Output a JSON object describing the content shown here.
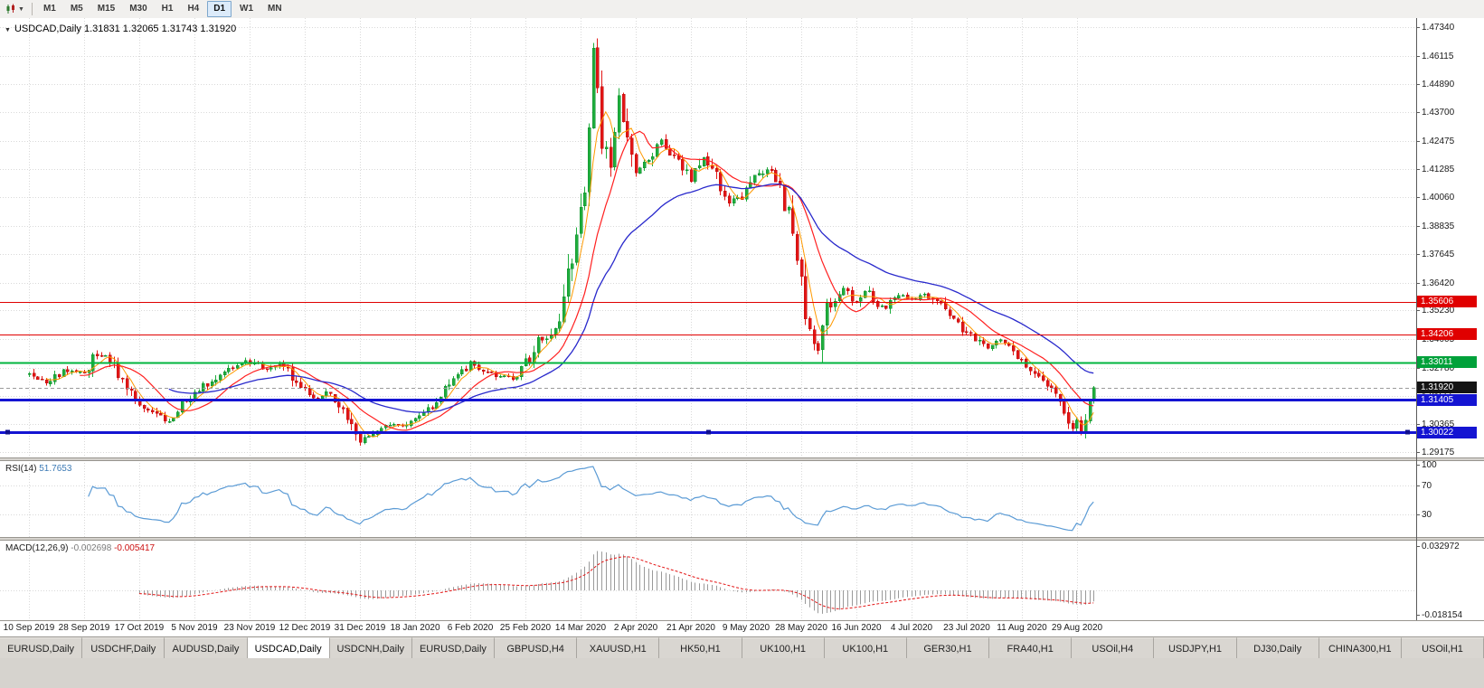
{
  "colors": {
    "up": "#1fae3d",
    "up_stroke": "#0f8a2c",
    "down": "#e31515",
    "down_stroke": "#b80f0f",
    "ma_fast": "#ff9900",
    "ma_mid": "#ff2020",
    "ma_slow": "#2929cc",
    "grid": "#d9d9d9",
    "rsi_line": "#5b9bd5",
    "macd_bar": "#9a9a9a",
    "macd_signal": "#e31515",
    "bid_line": "#9a9a9a",
    "axis_line": "#5a5a5a",
    "separator": "#d6d3ce",
    "separator_edge": "#98958f"
  },
  "toolbar": {
    "chart_menu_icon": "candlestick-chart-icon",
    "dropdown_icon": "caret-down-icon",
    "timeframes": [
      "M1",
      "M5",
      "M15",
      "M30",
      "H1",
      "H4",
      "D1",
      "W1",
      "MN"
    ],
    "active_timeframe": "D1"
  },
  "chart": {
    "symbol_period": "USDCAD,Daily",
    "ohlc": "1.31831 1.32065 1.31743 1.31920"
  },
  "rsi": {
    "label": "RSI(14)",
    "value": "51.7653",
    "axis_labels": [
      "100",
      "70",
      "30"
    ],
    "levels": [
      70,
      30
    ]
  },
  "macd": {
    "label": "MACD(12,26,9)",
    "value": "-0.002698",
    "signal_value": "-0.005417",
    "axis_top": "0.032972",
    "axis_bottom": "-0.018154"
  },
  "y_axis_labels": [
    "1.47340",
    "1.46115",
    "1.44890",
    "1.43700",
    "1.42475",
    "1.41285",
    "1.40060",
    "1.38835",
    "1.37645",
    "1.36420",
    "1.35230",
    "1.34005",
    "1.32780",
    "1.31555",
    "1.30365",
    "1.29175"
  ],
  "time_axis": [
    "10 Sep 2019",
    "28 Sep 2019",
    "17 Oct 2019",
    "5 Nov 2019",
    "23 Nov 2019",
    "12 Dec 2019",
    "31 Dec 2019",
    "18 Jan 2020",
    "6 Feb 2020",
    "25 Feb 2020",
    "14 Mar 2020",
    "2 Apr 2020",
    "21 Apr 2020",
    "9 May 2020",
    "28 May 2020",
    "16 Jun 2020",
    "4 Jul 2020",
    "23 Jul 2020",
    "11 Aug 2020",
    "29 Aug 2020"
  ],
  "price_tags": [
    {
      "value": "1.35606",
      "price": 1.35606,
      "bg": "#e00000"
    },
    {
      "value": "1.34206",
      "price": 1.34206,
      "bg": "#e00000"
    },
    {
      "value": "1.33011",
      "price": 1.33011,
      "bg": "#00a13a"
    },
    {
      "value": "1.31920",
      "price": 1.3192,
      "bg": "#141414"
    },
    {
      "value": "1.31405",
      "price": 1.31405,
      "bg": "#1414d2"
    },
    {
      "value": "1.30022",
      "price": 1.30022,
      "bg": "#1414d2"
    }
  ],
  "chart_data": {
    "type": "candlestick",
    "symbol": "USDCAD",
    "period": "Daily",
    "last_ohlc": {
      "open": 1.31831,
      "high": 1.32065,
      "low": 1.31743,
      "close": 1.3192
    },
    "bid": 1.3192,
    "price_axis": {
      "top": 1.47727,
      "bottom": 1.2894
    },
    "candles_count": 252,
    "price_path_anchors": [
      [
        0,
        1.3255
      ],
      [
        4,
        1.3215
      ],
      [
        8,
        1.3268
      ],
      [
        13,
        1.3245
      ],
      [
        16,
        1.3342
      ],
      [
        19,
        1.331
      ],
      [
        23,
        1.3205
      ],
      [
        26,
        1.313
      ],
      [
        30,
        1.3072
      ],
      [
        33,
        1.3052
      ],
      [
        36,
        1.312
      ],
      [
        39,
        1.3158
      ],
      [
        43,
        1.3228
      ],
      [
        47,
        1.3282
      ],
      [
        52,
        1.3302
      ],
      [
        56,
        1.3278
      ],
      [
        60,
        1.3292
      ],
      [
        64,
        1.3188
      ],
      [
        68,
        1.3142
      ],
      [
        71,
        1.3172
      ],
      [
        75,
        1.3078
      ],
      [
        78,
        1.2972
      ],
      [
        81,
        1.2992
      ],
      [
        85,
        1.3042
      ],
      [
        88,
        1.3035
      ],
      [
        91,
        1.3062
      ],
      [
        95,
        1.3112
      ],
      [
        99,
        1.3202
      ],
      [
        104,
        1.3292
      ],
      [
        108,
        1.3255
      ],
      [
        112,
        1.3242
      ],
      [
        115,
        1.323
      ],
      [
        117,
        1.3292
      ],
      [
        120,
        1.3392
      ],
      [
        123,
        1.3422
      ],
      [
        126,
        1.3545
      ],
      [
        128,
        1.3765
      ],
      [
        130,
        1.3962
      ],
      [
        131,
        1.4052
      ],
      [
        133,
        1.466
      ],
      [
        134,
        1.4452
      ],
      [
        135,
        1.4255
      ],
      [
        137,
        1.4105
      ],
      [
        139,
        1.445
      ],
      [
        141,
        1.4285
      ],
      [
        143,
        1.4085
      ],
      [
        146,
        1.4162
      ],
      [
        149,
        1.4262
      ],
      [
        152,
        1.4182
      ],
      [
        156,
        1.4082
      ],
      [
        159,
        1.4172
      ],
      [
        162,
        1.4092
      ],
      [
        165,
        1.3972
      ],
      [
        168,
        1.4012
      ],
      [
        171,
        1.4082
      ],
      [
        174,
        1.4132
      ],
      [
        177,
        1.4032
      ],
      [
        180,
        1.3882
      ],
      [
        182,
        1.3622
      ],
      [
        184,
        1.3442
      ],
      [
        186,
        1.3352
      ],
      [
        188,
        1.3522
      ],
      [
        190,
        1.3582
      ],
      [
        192,
        1.3622
      ],
      [
        195,
        1.3562
      ],
      [
        197,
        1.3612
      ],
      [
        199,
        1.3562
      ],
      [
        202,
        1.3532
      ],
      [
        205,
        1.3582
      ],
      [
        208,
        1.3572
      ],
      [
        211,
        1.3602
      ],
      [
        214,
        1.3562
      ],
      [
        217,
        1.3502
      ],
      [
        220,
        1.3442
      ],
      [
        223,
        1.3402
      ],
      [
        226,
        1.3362
      ],
      [
        229,
        1.3392
      ],
      [
        232,
        1.3352
      ],
      [
        234,
        1.3312
      ],
      [
        237,
        1.3262
      ],
      [
        240,
        1.3212
      ],
      [
        243,
        1.3152
      ],
      [
        245,
        1.3062
      ],
      [
        246,
        1.3012
      ],
      [
        247,
        1.3042
      ],
      [
        248,
        1.2996
      ],
      [
        249,
        1.3082
      ],
      [
        250,
        1.3152
      ],
      [
        251,
        1.3192
      ]
    ],
    "hlines": [
      {
        "price": 1.35606,
        "color": "#e00000",
        "width": 1.4,
        "selected": false
      },
      {
        "price": 1.34206,
        "color": "#e00000",
        "width": 1.4,
        "selected": false
      },
      {
        "price": 1.33011,
        "color": "#00b53e",
        "width": 2,
        "selected": false
      },
      {
        "price": 1.31405,
        "color": "#1414d2",
        "width": 2.6,
        "selected": false
      },
      {
        "price": 1.30022,
        "color": "#1414d2",
        "width": 2.6,
        "selected": true
      }
    ],
    "rsi_current": 51.7653,
    "macd_current": -0.002698,
    "macd_signal_current": -0.005417,
    "macd_axis": {
      "top": 0.032972,
      "bottom": -0.018154
    }
  },
  "tabs": [
    "EURUSD,Daily",
    "USDCHF,Daily",
    "AUDUSD,Daily",
    "USDCAD,Daily",
    "USDCNH,Daily",
    "EURUSD,Daily",
    "GBPUSD,H4",
    "XAUUSD,H1",
    "HK50,H1",
    "UK100,H1",
    "UK100,H1",
    "GER30,H1",
    "FRA40,H1",
    "USOil,H4",
    "USDJPY,H1",
    "DJ30,Daily",
    "CHINA300,H1",
    "USOil,H1"
  ],
  "active_tab_index": 3
}
